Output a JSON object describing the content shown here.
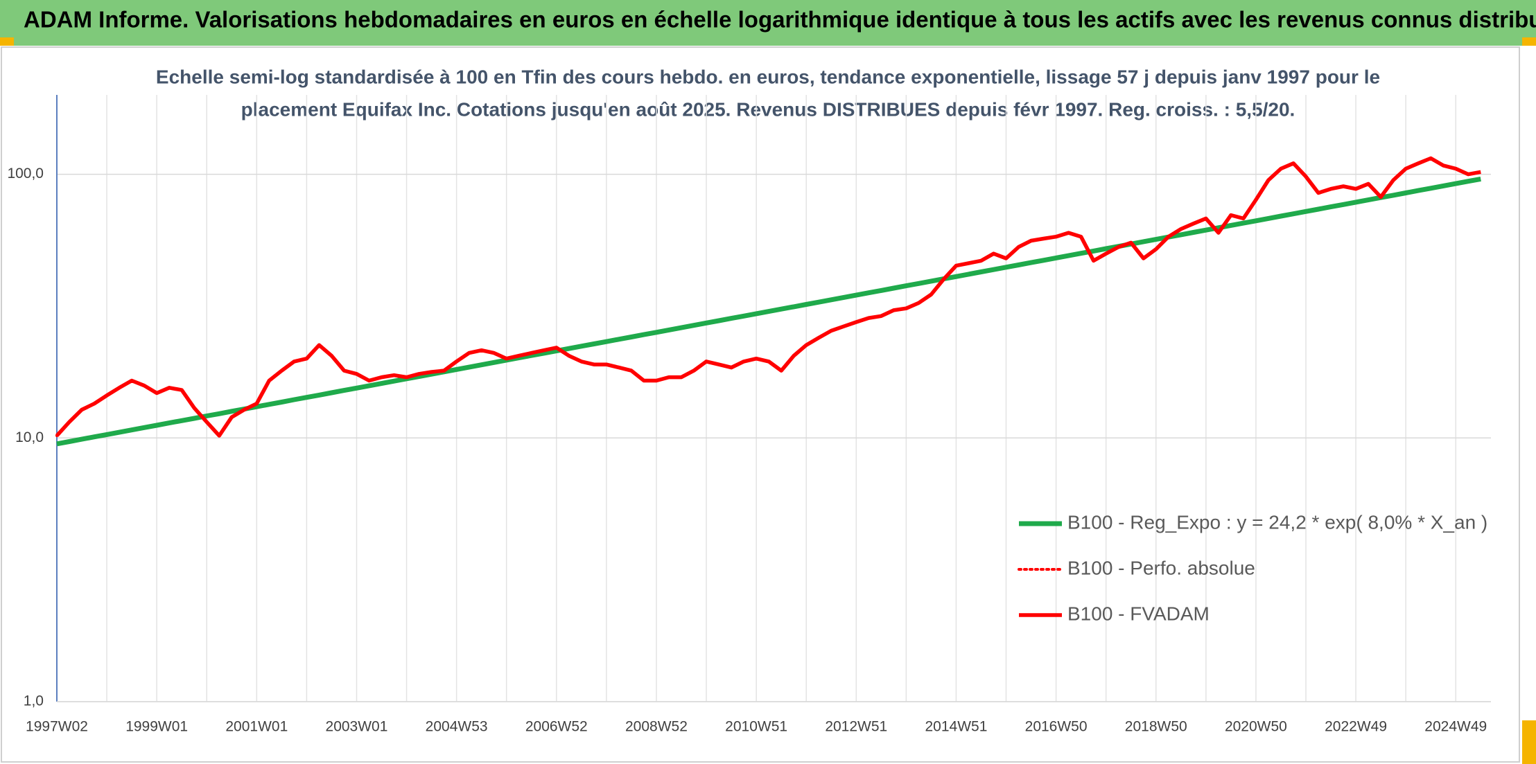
{
  "chart_data": {
    "type": "line",
    "title": "ADAM Informe. Valorisations hebdomadaires en euros en échelle logarithmique identique à tous les actifs avec les revenus connus distribués",
    "subtitle": [
      "Echelle semi-log standardisée à 100 en Tfin des cours hebdo. en euros, tendance exponentielle, lissage 57 j depuis janv 1997 pour le",
      "placement Equifax Inc. Cotations jusqu'en août 2025. Revenus DISTRIBUES depuis févr 1997. Reg. croiss. : 5,5/20."
    ],
    "log_scale": true,
    "grid": true,
    "legend": "lower right",
    "ylim": [
      1,
      200
    ],
    "yticks": [
      {
        "value": 1,
        "label": "1,0"
      },
      {
        "value": 10,
        "label": "10,0"
      },
      {
        "value": 100,
        "label": "100,0"
      }
    ],
    "categories": [
      "1997W02",
      null,
      null,
      null,
      null,
      null,
      null,
      null,
      "1999W01",
      null,
      null,
      null,
      null,
      null,
      null,
      null,
      "2001W01",
      null,
      null,
      null,
      null,
      null,
      null,
      null,
      "2003W01",
      null,
      null,
      null,
      null,
      null,
      null,
      null,
      "2004W53",
      null,
      null,
      null,
      null,
      null,
      null,
      null,
      "2006W52",
      null,
      null,
      null,
      null,
      null,
      null,
      null,
      "2008W52",
      null,
      null,
      null,
      null,
      null,
      null,
      null,
      "2010W51",
      null,
      null,
      null,
      null,
      null,
      null,
      null,
      "2012W51",
      null,
      null,
      null,
      null,
      null,
      null,
      null,
      "2014W51",
      null,
      null,
      null,
      null,
      null,
      null,
      null,
      "2016W50",
      null,
      null,
      null,
      null,
      null,
      null,
      null,
      "2018W50",
      null,
      null,
      null,
      null,
      null,
      null,
      null,
      "2020W50",
      null,
      null,
      null,
      null,
      null,
      null,
      null,
      "2022W49",
      null,
      null,
      null,
      null,
      null,
      null,
      null,
      "2024W49",
      null,
      null
    ],
    "series": [
      {
        "name": "B100 - Reg_Expo : y = 24,2 * exp( 8,0% *  X_an )",
        "color": "#1faa4b",
        "width": 7,
        "dash": "solid",
        "values": [
          9.5,
          9.69,
          9.89,
          10.1,
          10.3,
          10.51,
          10.73,
          10.95,
          11.17,
          11.4,
          11.63,
          11.87,
          12.12,
          12.36,
          12.62,
          12.87,
          13.14,
          13.41,
          13.68,
          13.97,
          14.25,
          14.54,
          14.84,
          15.15,
          15.46,
          15.78,
          16.1,
          16.43,
          16.77,
          17.11,
          17.46,
          17.82,
          18.19,
          18.56,
          18.94,
          19.33,
          19.73,
          20.13,
          20.55,
          20.97,
          21.39,
          21.83,
          22.28,
          22.73,
          23.2,
          23.67,
          24.16,
          24.65,
          25.16,
          25.68,
          26.2,
          26.74,
          27.29,
          27.85,
          28.42,
          29.0,
          29.59,
          30.2,
          30.82,
          31.45,
          32.09,
          32.75,
          33.42,
          34.11,
          34.81,
          35.52,
          36.25,
          37.0,
          37.76,
          38.53,
          39.32,
          40.12,
          40.94,
          41.78,
          42.64,
          43.51,
          44.4,
          45.31,
          46.24,
          47.19,
          48.15,
          49.14,
          50.14,
          51.17,
          52.22,
          53.29,
          54.39,
          55.5,
          56.64,
          57.8,
          58.99,
          60.2,
          61.43,
          62.69,
          63.98,
          65.28,
          66.62,
          67.99,
          69.38,
          70.8,
          72.26,
          73.74,
          75.25,
          76.79,
          78.36,
          79.97,
          81.6,
          83.28,
          84.99,
          86.73,
          88.51,
          90.32,
          92.17,
          94.06,
          95.99
        ]
      },
      {
        "name": "B100 - Perfo. absolue",
        "color": "#ff0000",
        "width": 4,
        "dash": "dotted",
        "values": [
          10.2,
          11.5,
          12.8,
          13.5,
          14.5,
          15.5,
          16.5,
          15.8,
          14.8,
          15.5,
          15.2,
          13.0,
          11.5,
          10.2,
          12.0,
          12.8,
          13.5,
          16.5,
          18.0,
          19.5,
          20.0,
          22.5,
          20.5,
          18.0,
          17.5,
          16.5,
          17.0,
          17.3,
          17.0,
          17.5,
          17.8,
          18.0,
          19.5,
          21.0,
          21.5,
          21.0,
          20.0,
          20.5,
          21.0,
          21.5,
          22.0,
          20.5,
          19.5,
          19.0,
          19.0,
          18.5,
          18.0,
          16.5,
          16.5,
          17.0,
          17.0,
          18.0,
          19.5,
          19.0,
          18.5,
          19.5,
          20.0,
          19.5,
          18.0,
          20.5,
          22.5,
          24.0,
          25.5,
          26.5,
          27.5,
          28.5,
          29.0,
          30.5,
          31.0,
          32.5,
          35.0,
          40.0,
          45.0,
          46.0,
          47.0,
          50.0,
          48.0,
          53.0,
          56.0,
          57.0,
          58.0,
          60.0,
          58.0,
          47.0,
          50.0,
          53.0,
          55.0,
          48.0,
          52.0,
          58.0,
          62.0,
          65.0,
          68.0,
          60.0,
          70.0,
          68.0,
          80.0,
          95.0,
          105.0,
          110.0,
          98.0,
          85.0,
          88.0,
          90.0,
          88.0,
          92.0,
          82.0,
          95.0,
          105.0,
          110.0,
          115.0,
          108.0,
          105.0,
          100.0,
          102.0
        ]
      },
      {
        "name": "B100 - FVADAM",
        "color": "#ff0000",
        "width": 5.5,
        "dash": "solid",
        "values": [
          10.2,
          11.5,
          12.8,
          13.5,
          14.5,
          15.5,
          16.5,
          15.8,
          14.8,
          15.5,
          15.2,
          13.0,
          11.5,
          10.2,
          12.0,
          12.8,
          13.5,
          16.5,
          18.0,
          19.5,
          20.0,
          22.5,
          20.5,
          18.0,
          17.5,
          16.5,
          17.0,
          17.3,
          17.0,
          17.5,
          17.8,
          18.0,
          19.5,
          21.0,
          21.5,
          21.0,
          20.0,
          20.5,
          21.0,
          21.5,
          22.0,
          20.5,
          19.5,
          19.0,
          19.0,
          18.5,
          18.0,
          16.5,
          16.5,
          17.0,
          17.0,
          18.0,
          19.5,
          19.0,
          18.5,
          19.5,
          20.0,
          19.5,
          18.0,
          20.5,
          22.5,
          24.0,
          25.5,
          26.5,
          27.5,
          28.5,
          29.0,
          30.5,
          31.0,
          32.5,
          35.0,
          40.0,
          45.0,
          46.0,
          47.0,
          50.0,
          48.0,
          53.0,
          56.0,
          57.0,
          58.0,
          60.0,
          58.0,
          47.0,
          50.0,
          53.0,
          55.0,
          48.0,
          52.0,
          58.0,
          62.0,
          65.0,
          68.0,
          60.0,
          70.0,
          68.0,
          80.0,
          95.0,
          105.0,
          110.0,
          98.0,
          85.0,
          88.0,
          90.0,
          88.0,
          92.0,
          82.0,
          95.0,
          105.0,
          110.0,
          115.0,
          108.0,
          105.0,
          100.0,
          102.0
        ]
      }
    ]
  }
}
